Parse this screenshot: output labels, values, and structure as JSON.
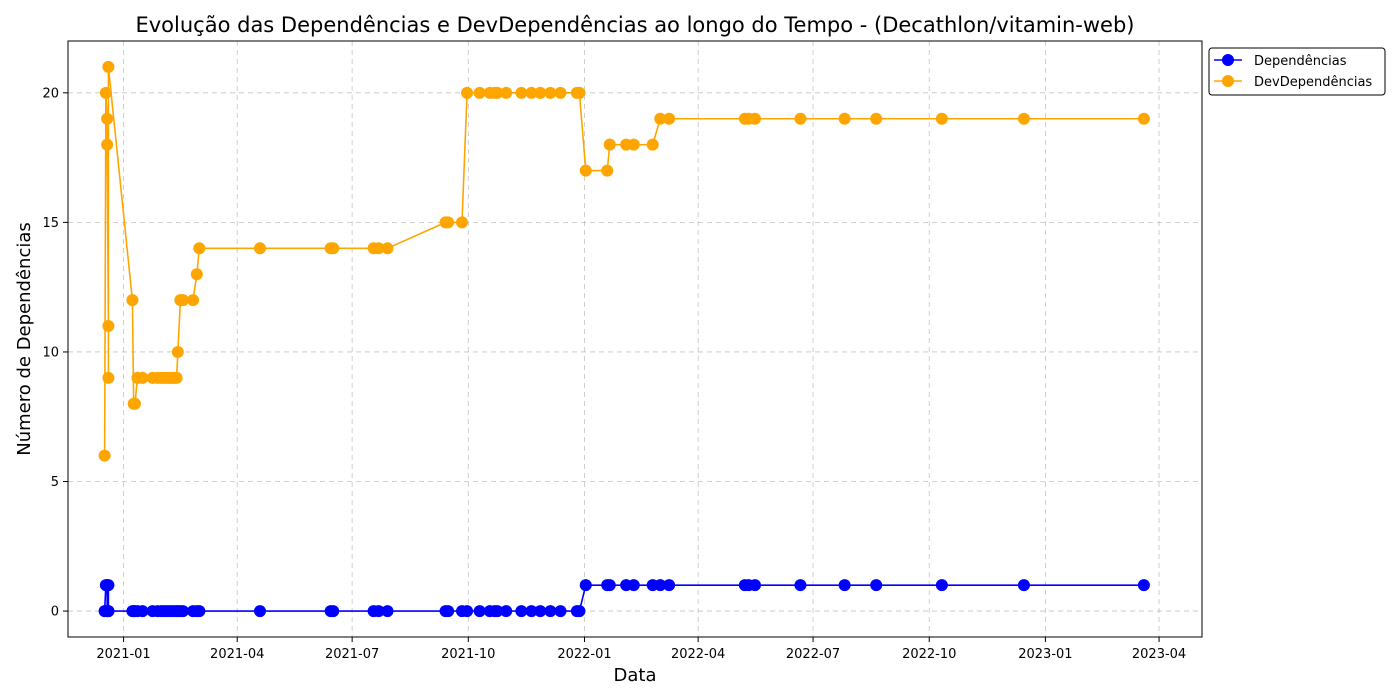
{
  "chart_data": {
    "type": "line",
    "title": "Evolução das Dependências e DevDependências ao longo do Tempo - (Decathlon/vitamin-web)",
    "xlabel": "Data",
    "ylabel": "Número de Dependências",
    "xlim": [
      "2020-11-18",
      "2023-05-05"
    ],
    "ylim": [
      -1,
      22
    ],
    "x_ticks": [
      {
        "date": "2021-01-01",
        "label": "2021-01"
      },
      {
        "date": "2021-04-01",
        "label": "2021-04"
      },
      {
        "date": "2021-07-01",
        "label": "2021-07"
      },
      {
        "date": "2021-10-01",
        "label": "2021-10"
      },
      {
        "date": "2022-01-01",
        "label": "2022-01"
      },
      {
        "date": "2022-04-01",
        "label": "2022-04"
      },
      {
        "date": "2022-07-01",
        "label": "2022-07"
      },
      {
        "date": "2022-10-01",
        "label": "2022-10"
      },
      {
        "date": "2023-01-01",
        "label": "2023-01"
      },
      {
        "date": "2023-04-01",
        "label": "2023-04"
      }
    ],
    "y_ticks": [
      0,
      5,
      10,
      15,
      20
    ],
    "grid": true,
    "legend_position": "outside-top-right",
    "x": [
      "2020-12-17",
      "2020-12-18",
      "2020-12-19",
      "2020-12-19",
      "2020-12-20",
      "2020-12-20",
      "2020-12-20",
      "2021-01-08",
      "2021-01-09",
      "2021-01-10",
      "2021-01-12",
      "2021-01-16",
      "2021-01-24",
      "2021-01-28",
      "2021-01-31",
      "2021-02-02",
      "2021-02-04",
      "2021-02-06",
      "2021-02-08",
      "2021-02-10",
      "2021-02-12",
      "2021-02-13",
      "2021-02-15",
      "2021-02-17",
      "2021-02-25",
      "2021-02-28",
      "2021-03-02",
      "2021-04-19",
      "2021-06-14",
      "2021-06-16",
      "2021-07-18",
      "2021-07-22",
      "2021-07-29",
      "2021-09-13",
      "2021-09-15",
      "2021-09-26",
      "2021-09-30",
      "2021-10-10",
      "2021-10-18",
      "2021-10-22",
      "2021-10-24",
      "2021-10-31",
      "2021-11-12",
      "2021-11-20",
      "2021-11-27",
      "2021-12-05",
      "2021-12-13",
      "2021-12-26",
      "2021-12-28",
      "2022-01-02",
      "2022-01-19",
      "2022-01-21",
      "2022-02-03",
      "2022-02-09",
      "2022-02-24",
      "2022-03-02",
      "2022-03-09",
      "2022-05-08",
      "2022-05-11",
      "2022-05-16",
      "2022-06-21",
      "2022-07-26",
      "2022-08-20",
      "2022-10-11",
      "2022-12-15",
      "2023-03-20"
    ],
    "series": [
      {
        "name": "Dependências",
        "color": "#0000ff",
        "values": [
          0,
          1,
          1,
          0,
          1,
          0,
          0,
          0,
          0,
          0,
          0,
          0,
          0,
          0,
          0,
          0,
          0,
          0,
          0,
          0,
          0,
          0,
          0,
          0,
          0,
          0,
          0,
          0,
          0,
          0,
          0,
          0,
          0,
          0,
          0,
          0,
          0,
          0,
          0,
          0,
          0,
          0,
          0,
          0,
          0,
          0,
          0,
          0,
          0,
          1,
          1,
          1,
          1,
          1,
          1,
          1,
          1,
          1,
          1,
          1,
          1,
          1,
          1,
          1,
          1,
          1
        ]
      },
      {
        "name": "DevDependências",
        "color": "#ffa500",
        "values": [
          6,
          20,
          19,
          18,
          11,
          9,
          21,
          12,
          8,
          8,
          9,
          9,
          9,
          9,
          9,
          9,
          9,
          9,
          9,
          9,
          9,
          10,
          12,
          12,
          12,
          13,
          14,
          14,
          14,
          14,
          14,
          14,
          14,
          15,
          15,
          15,
          20,
          20,
          20,
          20,
          20,
          20,
          20,
          20,
          20,
          20,
          20,
          20,
          20,
          17,
          17,
          18,
          18,
          18,
          18,
          19,
          19,
          19,
          19,
          19,
          19,
          19,
          19,
          19,
          19,
          19
        ]
      }
    ]
  }
}
